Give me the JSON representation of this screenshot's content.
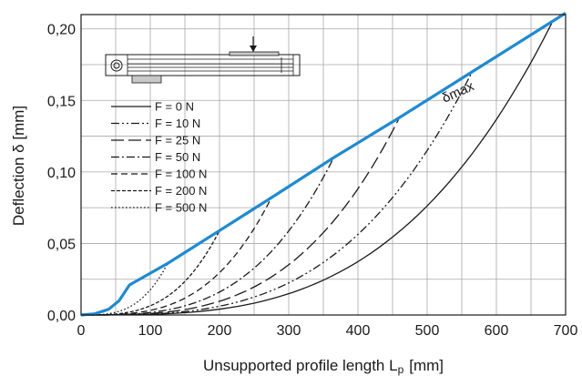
{
  "chart_data": {
    "type": "line",
    "xlabel": "Unsupported profile length L",
    "xlabel_sub": "p",
    "xunit": "[mm]",
    "ylabel": "Deflection δ [mm]",
    "xlim": [
      0,
      700
    ],
    "ylim": [
      0,
      0.21
    ],
    "grid": true,
    "x_ticks": [
      0,
      100,
      200,
      300,
      400,
      500,
      600,
      700
    ],
    "x_tick_labels": [
      "0",
      "100",
      "200",
      "300",
      "400",
      "500",
      "600",
      "700"
    ],
    "y_ticks": [
      0,
      0.05,
      0.1,
      0.15,
      0.2
    ],
    "y_tick_labels": [
      "0,00",
      "0,05",
      "0,10",
      "0,15",
      "0,20"
    ],
    "legend_position": "upper-left",
    "annotation": "δmax",
    "envelope": {
      "name": "δmax",
      "color": "#1f8ad0",
      "points": [
        [
          0,
          0
        ],
        [
          20,
          0.0008
        ],
        [
          40,
          0.004
        ],
        [
          55,
          0.01
        ],
        [
          70,
          0.021
        ],
        [
          125,
          0.036
        ],
        [
          200,
          0.059
        ],
        [
          275,
          0.082
        ],
        [
          365,
          0.11
        ],
        [
          460,
          0.138
        ],
        [
          565,
          0.17
        ],
        [
          700,
          0.211
        ]
      ]
    },
    "series": [
      {
        "name": "F = 0 N",
        "dash": "solid",
        "end_x": 680,
        "end_y": 0.204
      },
      {
        "name": "F = 10 N",
        "dash": "dashdotdot",
        "end_x": 565,
        "end_y": 0.17
      },
      {
        "name": "F = 25 N",
        "dash": "longdash",
        "end_x": 460,
        "end_y": 0.138
      },
      {
        "name": "F = 50 N",
        "dash": "dashdot",
        "end_x": 365,
        "end_y": 0.11
      },
      {
        "name": "F = 100 N",
        "dash": "dash",
        "end_x": 275,
        "end_y": 0.082
      },
      {
        "name": "F = 200 N",
        "dash": "shortdash",
        "end_x": 200,
        "end_y": 0.059
      },
      {
        "name": "F = 500 N",
        "dash": "dot",
        "end_x": 125,
        "end_y": 0.036
      }
    ]
  }
}
